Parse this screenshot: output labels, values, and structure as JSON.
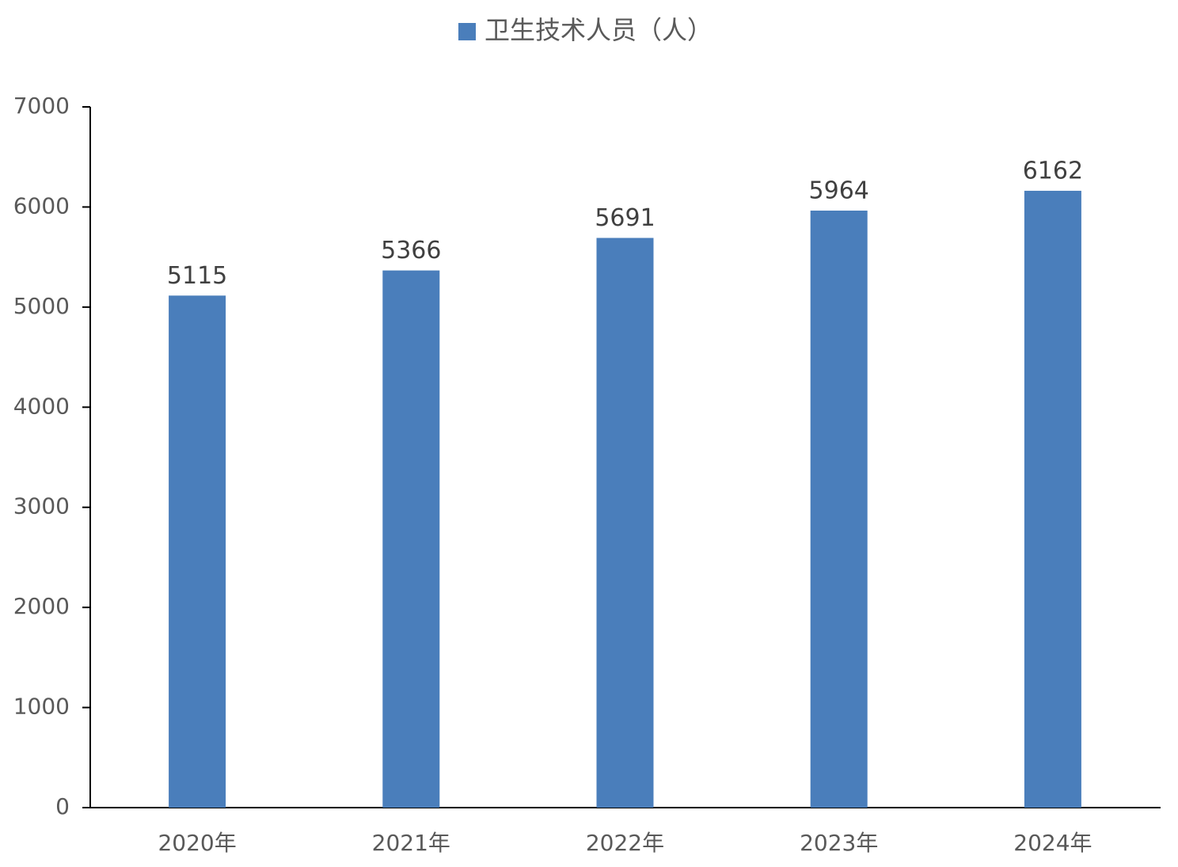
{
  "chart_data": {
    "type": "bar",
    "categories": [
      "2020年",
      "2021年",
      "2022年",
      "2023年",
      "2024年"
    ],
    "series": [
      {
        "name": "卫生技术人员（人）",
        "color": "#4a7ebb",
        "values": [
          5115,
          5366,
          5691,
          5964,
          6162
        ]
      }
    ],
    "ylim": [
      0,
      7000
    ],
    "yticks": [
      0,
      1000,
      2000,
      3000,
      4000,
      5000,
      6000,
      7000
    ],
    "grid": false,
    "legend": "top"
  }
}
